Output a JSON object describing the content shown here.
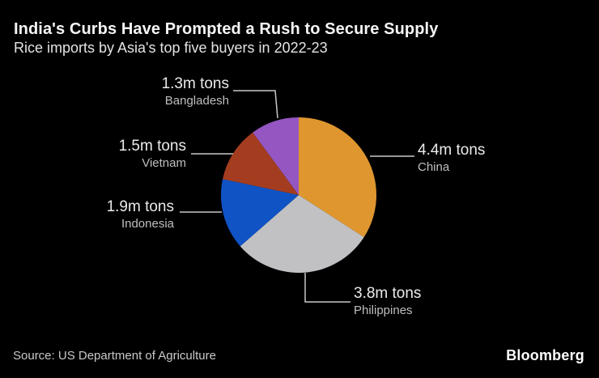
{
  "header": {
    "title": "India's Curbs Have Prompted a Rush to Secure Supply",
    "subtitle": "Rice imports by Asia's top five buyers in 2022-23"
  },
  "footer": {
    "source": "Source: US Department of Agriculture",
    "brand": "Bloomberg"
  },
  "chart_data": {
    "type": "pie",
    "title": "India's Curbs Have Prompted a Rush to Secure Supply",
    "subtitle": "Rice imports by Asia's top five buyers in 2022-23",
    "units": "m tons",
    "start_angle_deg": 0,
    "direction": "clockwise",
    "legend": "none",
    "background": "#000000",
    "leader_line_color": "#C8C8C8",
    "slices": [
      {
        "name": "China",
        "value": 4.4,
        "value_label": "4.4m tons",
        "color": "#DF962F"
      },
      {
        "name": "Philippines",
        "value": 3.8,
        "value_label": "3.8m tons",
        "color": "#C1C1C3"
      },
      {
        "name": "Indonesia",
        "value": 1.9,
        "value_label": "1.9m tons",
        "color": "#1053C5"
      },
      {
        "name": "Vietnam",
        "value": 1.5,
        "value_label": "1.5m tons",
        "color": "#A43D20"
      },
      {
        "name": "Bangladesh",
        "value": 1.3,
        "value_label": "1.3m tons",
        "color": "#9456C1"
      }
    ]
  }
}
